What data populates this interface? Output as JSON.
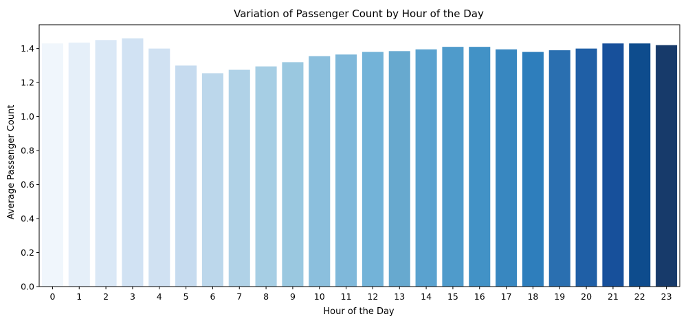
{
  "chart_data": {
    "type": "bar",
    "title": "Variation of Passenger Count by Hour of the Day",
    "xlabel": "Hour of the Day",
    "ylabel": "Average Passenger Count",
    "categories": [
      "0",
      "1",
      "2",
      "3",
      "4",
      "5",
      "6",
      "7",
      "8",
      "9",
      "10",
      "11",
      "12",
      "13",
      "14",
      "15",
      "16",
      "17",
      "18",
      "19",
      "20",
      "21",
      "22",
      "23"
    ],
    "values": [
      1.43,
      1.435,
      1.45,
      1.46,
      1.4,
      1.3,
      1.255,
      1.275,
      1.295,
      1.32,
      1.355,
      1.365,
      1.38,
      1.385,
      1.395,
      1.41,
      1.41,
      1.395,
      1.38,
      1.39,
      1.4,
      1.43,
      1.43,
      1.42
    ],
    "ylim": [
      0,
      1.54
    ],
    "yticks": [
      0.0,
      0.2,
      0.4,
      0.6,
      0.8,
      1.0,
      1.2,
      1.4
    ],
    "ytick_labels": [
      "0.0",
      "0.2",
      "0.4",
      "0.6",
      "0.8",
      "1.0",
      "1.2",
      "1.4"
    ],
    "grid": false,
    "colors": [
      "#f0f6fc",
      "#e5eff9",
      "#dae8f6",
      "#d1e2f3",
      "#d0e1f2",
      "#c6dbef",
      "#bcd7eb",
      "#b0d2e7",
      "#a6cee4",
      "#9ac8e0",
      "#8bbfdd",
      "#7fb8da",
      "#73b3d8",
      "#67a9cf",
      "#5aa2cf",
      "#4f9bcb",
      "#4292c6",
      "#3887c0",
      "#2e7ebc",
      "#2a6fb0",
      "#1f5fa6",
      "#17509b",
      "#0e4c8d",
      "#173a6a"
    ]
  }
}
